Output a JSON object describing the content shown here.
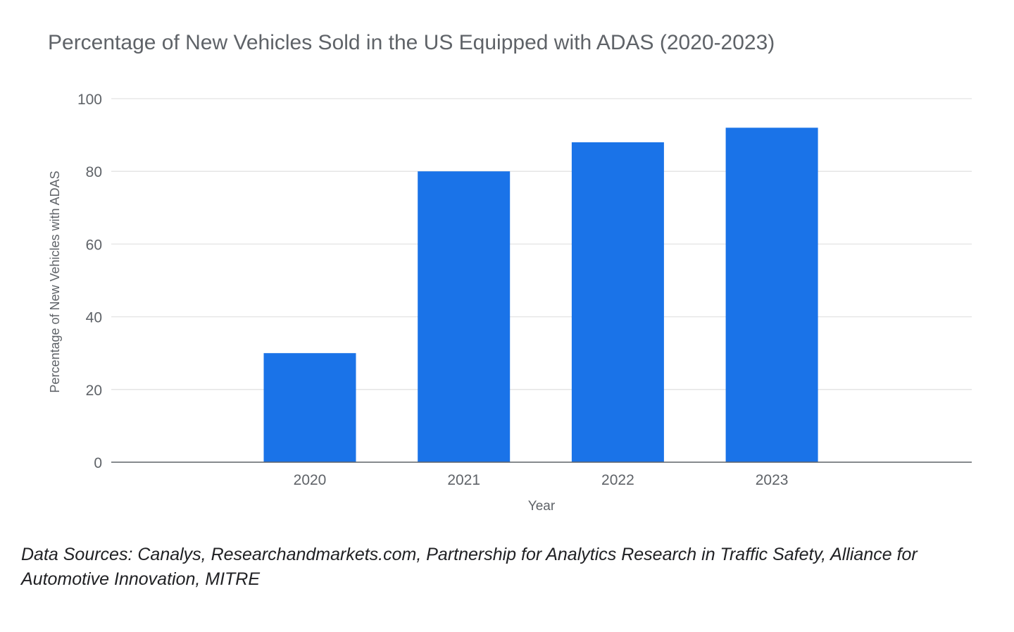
{
  "chart_data": {
    "type": "bar",
    "title": "Percentage of New Vehicles Sold in the US Equipped with ADAS (2020-2023)",
    "categories": [
      "2020",
      "2021",
      "2022",
      "2023"
    ],
    "values": [
      30,
      80,
      88,
      92
    ],
    "xlabel": "Year",
    "ylabel": "Percentage of New Vehicles with ADAS",
    "ylim": [
      0,
      100
    ],
    "yticks": [
      "0",
      "20",
      "40",
      "60",
      "80",
      "100"
    ],
    "grid": true,
    "legend": "none",
    "bar_color": "#1a73e8"
  },
  "footer": {
    "source": "Data Sources: Canalys, Researchandmarkets.com, Partnership for Analytics Research in Traffic Safety, Alliance for Automotive Innovation, MITRE"
  }
}
